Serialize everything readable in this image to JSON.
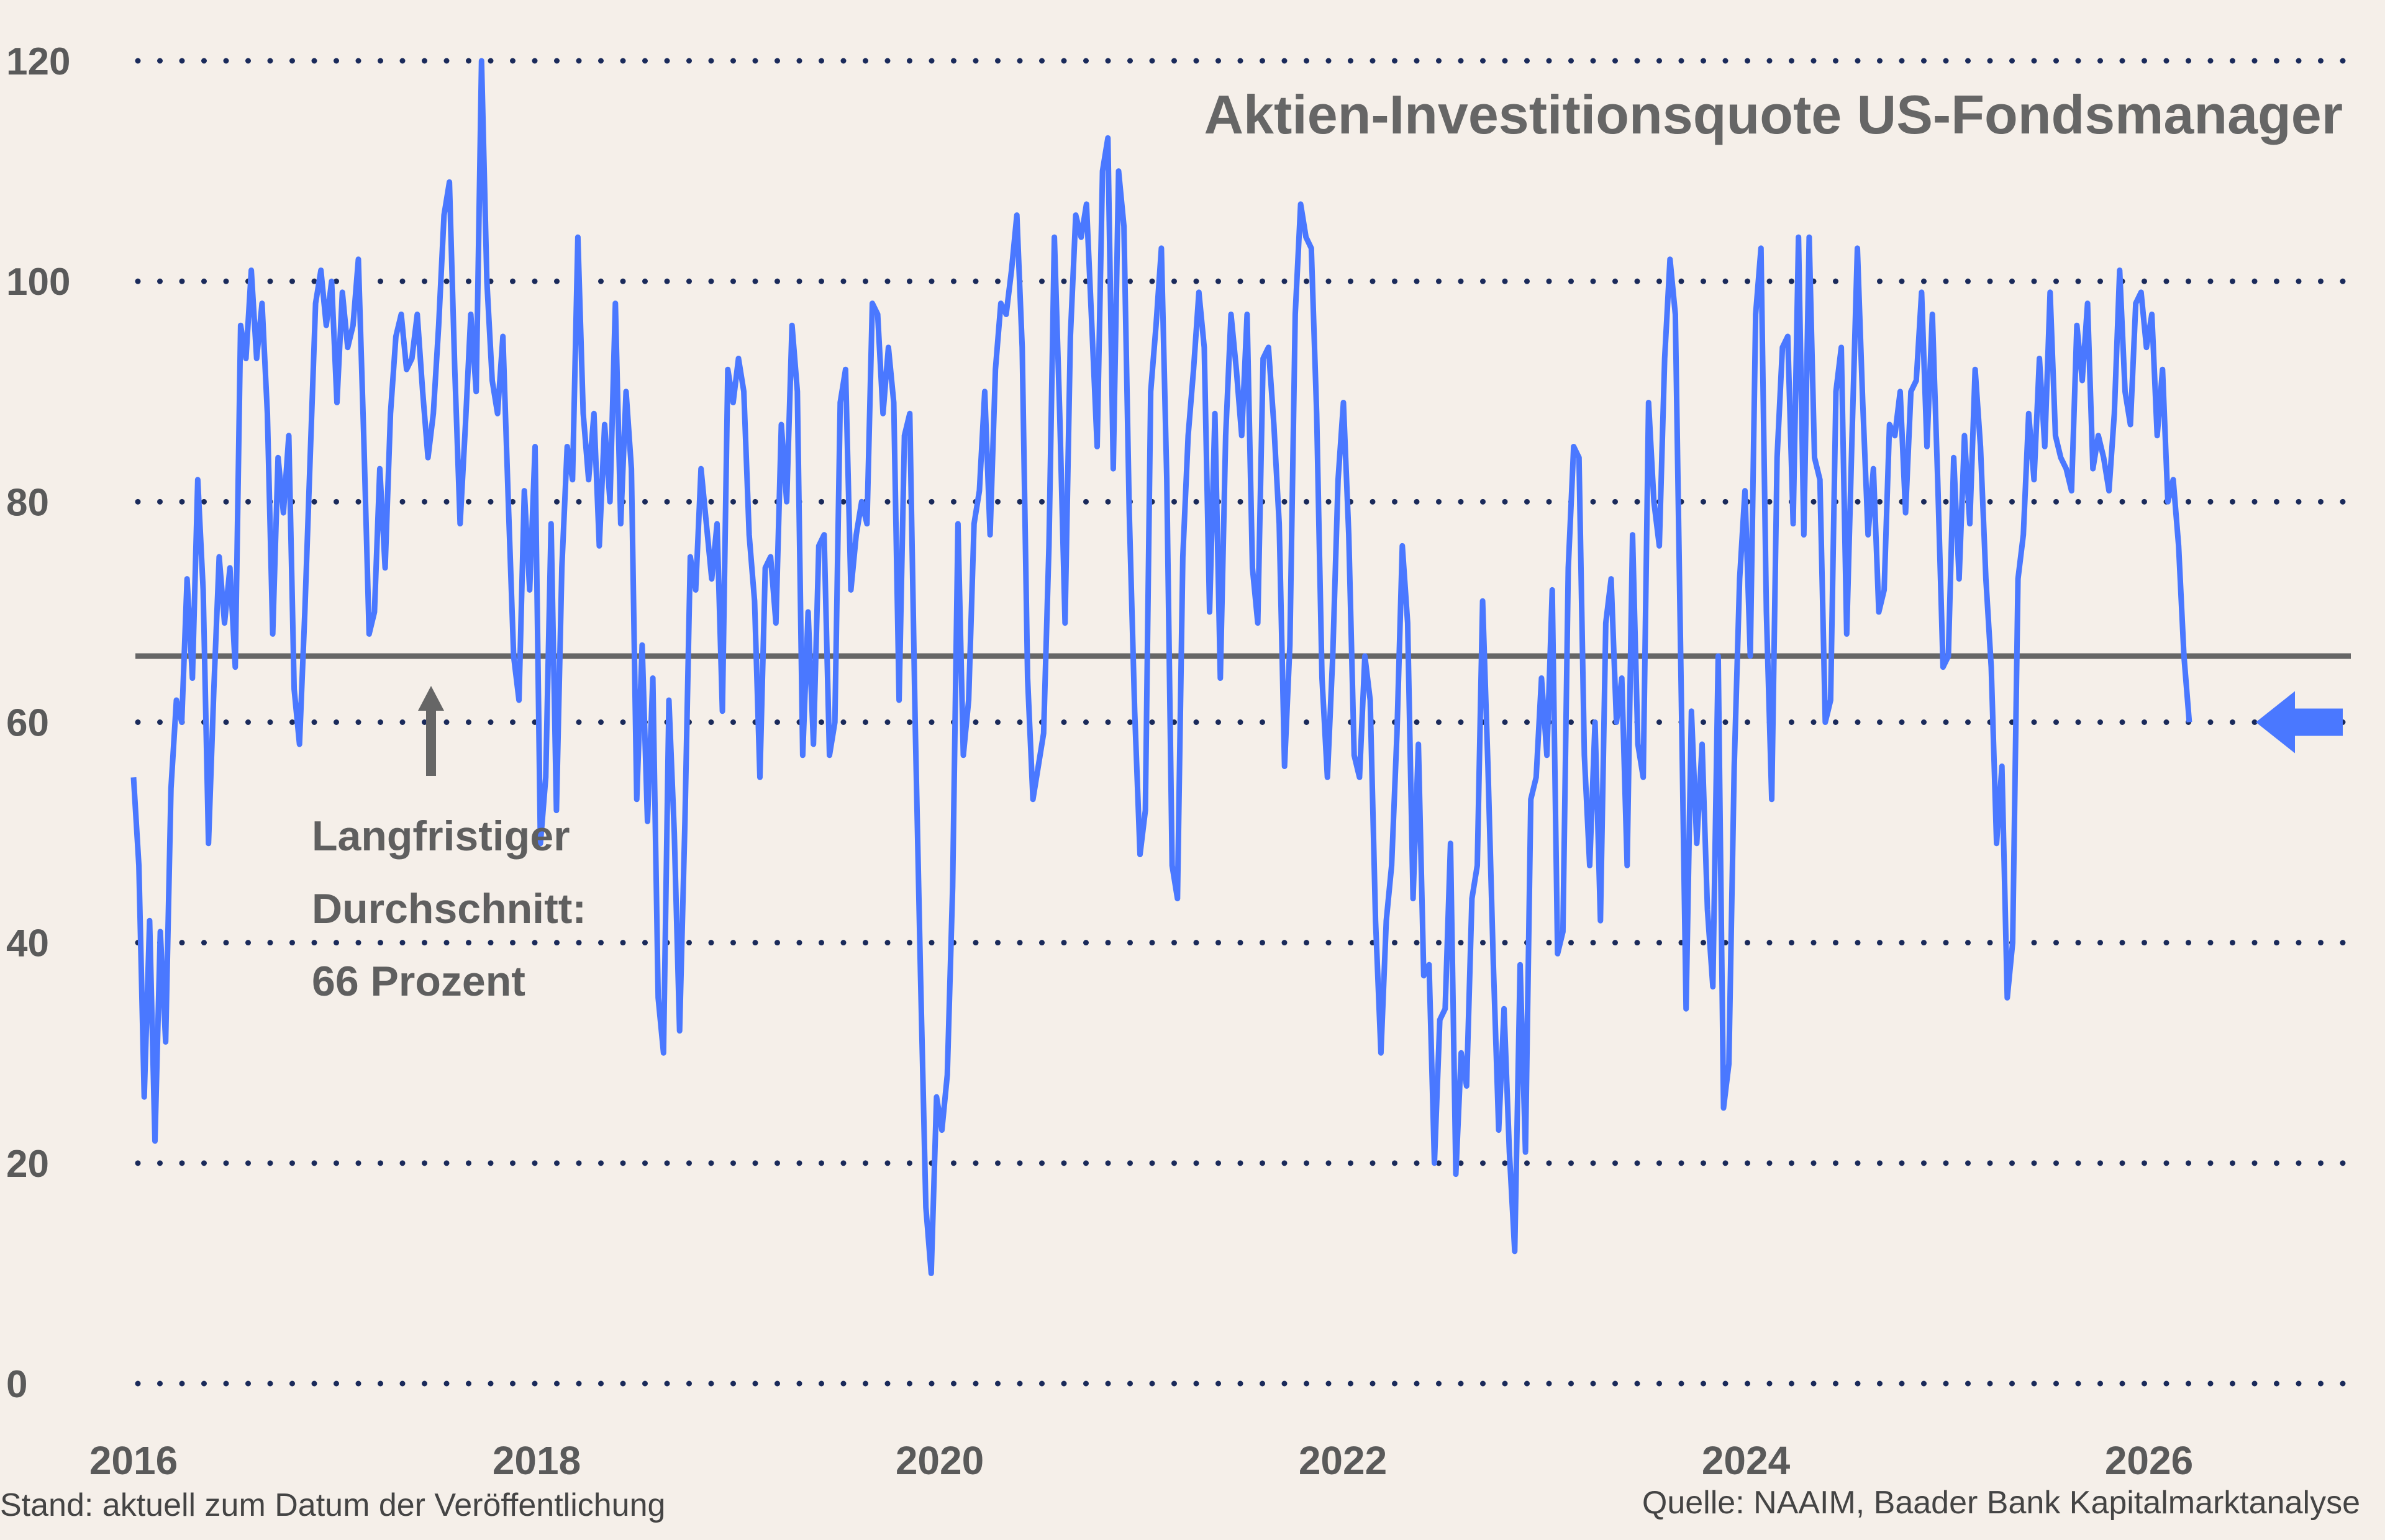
{
  "chart_data": {
    "type": "line",
    "title": "Aktien-Investitionsquote US-Fondsmanager",
    "xlabel": "",
    "ylabel": "",
    "xlim": [
      2016,
      2027
    ],
    "ylim": [
      0,
      120
    ],
    "x_ticks": [
      "2016",
      "2018",
      "2020",
      "2022",
      "2024",
      "2026"
    ],
    "x_tick_values": [
      2016,
      2018,
      2020,
      2022,
      2024,
      2026
    ],
    "y_ticks": [
      "0",
      "20",
      "40",
      "60",
      "80",
      "100",
      "120"
    ],
    "y_tick_values": [
      0,
      20,
      40,
      60,
      80,
      100,
      120
    ],
    "grid": "horizontal dotted",
    "x_first": 2016.0,
    "x_last": 2026.2,
    "series": [
      {
        "color": "#4a78ff",
        "values": [
          55,
          47,
          26,
          42,
          22,
          41,
          31,
          54,
          62,
          60,
          73,
          64,
          82,
          72,
          49,
          63,
          75,
          69,
          74,
          65,
          96,
          93,
          101,
          93,
          98,
          88,
          68,
          84,
          79,
          86,
          63,
          58,
          70,
          84,
          98,
          101,
          96,
          100,
          89,
          99,
          94,
          96,
          102,
          86,
          68,
          70,
          83,
          74,
          88,
          95,
          97,
          92,
          93,
          97,
          90,
          84,
          88,
          96,
          106,
          109,
          92,
          78,
          87,
          97,
          90,
          120,
          100,
          91,
          88,
          95,
          80,
          66,
          62,
          81,
          72,
          85,
          49,
          55,
          78,
          52,
          74,
          85,
          82,
          104,
          88,
          82,
          88,
          76,
          87,
          80,
          98,
          78,
          90,
          83,
          53,
          67,
          51,
          64,
          35,
          30,
          62,
          50,
          32,
          51,
          75,
          72,
          83,
          78,
          73,
          78,
          61,
          92,
          89,
          93,
          90,
          77,
          71,
          55,
          74,
          75,
          69,
          87,
          80,
          96,
          90,
          57,
          70,
          58,
          76,
          77,
          57,
          60,
          89,
          92,
          72,
          77,
          80,
          78,
          98,
          97,
          88,
          94,
          89,
          62,
          86,
          88,
          60,
          37,
          16,
          10,
          26,
          23,
          28,
          45,
          78,
          57,
          62,
          78,
          81,
          90,
          77,
          92,
          98,
          97,
          101,
          106,
          94,
          64,
          53,
          56,
          59,
          76,
          104,
          88,
          69,
          95,
          106,
          104,
          107,
          96,
          85,
          110,
          113,
          83,
          110,
          105,
          79,
          61,
          48,
          52,
          90,
          96,
          103,
          82,
          47,
          44,
          75,
          86,
          92,
          99,
          94,
          70,
          88,
          64,
          86,
          97,
          92,
          86,
          97,
          74,
          69,
          93,
          94,
          87,
          78,
          56,
          67,
          97,
          107,
          104,
          103,
          88,
          64,
          55,
          66,
          82,
          89,
          77,
          57,
          55,
          66,
          62,
          42,
          30,
          42,
          47,
          59,
          76,
          69,
          44,
          58,
          37,
          38,
          20,
          33,
          34,
          49,
          19,
          30,
          27,
          44,
          47,
          71,
          56,
          38,
          23,
          34,
          21,
          12,
          38,
          21,
          53,
          55,
          64,
          57,
          72,
          39,
          41,
          74,
          85,
          84,
          57,
          47,
          60,
          42,
          69,
          73,
          60,
          64,
          47,
          77,
          58,
          55,
          89,
          80,
          76,
          93,
          102,
          97,
          66,
          34,
          61,
          49,
          58,
          43,
          36,
          66,
          25,
          29,
          56,
          73,
          81,
          66,
          97,
          103,
          70,
          53,
          84,
          94,
          95,
          78,
          104,
          77,
          104,
          84,
          82,
          60,
          62,
          90,
          94,
          68,
          86,
          103,
          89,
          77,
          83,
          70,
          72,
          87,
          86,
          90,
          79,
          90,
          91,
          99,
          85,
          97,
          82,
          65,
          66,
          84,
          73,
          86,
          78,
          92,
          85,
          73,
          65,
          49,
          56,
          35,
          40,
          73,
          77,
          88,
          82,
          93,
          85,
          99,
          86,
          84,
          83,
          81,
          96,
          91,
          98,
          83,
          86,
          84,
          81,
          88,
          101,
          90,
          87,
          98,
          99,
          94,
          97,
          86,
          92,
          80,
          82,
          76,
          66,
          60
        ]
      }
    ],
    "reference_line": {
      "value": 66,
      "color": "#666666"
    },
    "annotation": {
      "lines": [
        "Langfristiger",
        "Durchschnitt:",
        "66 Prozent"
      ],
      "arrow": "up"
    },
    "latest_marker": {
      "value": 60,
      "arrow": "left",
      "color": "#4a78ff"
    },
    "grid_color": "#1a2a5a"
  },
  "footer": {
    "left": "Stand: aktuell zum Datum der Veröffentlichung",
    "right": "Quelle: NAAIM, Baader Bank Kapitalmarktanalyse"
  }
}
